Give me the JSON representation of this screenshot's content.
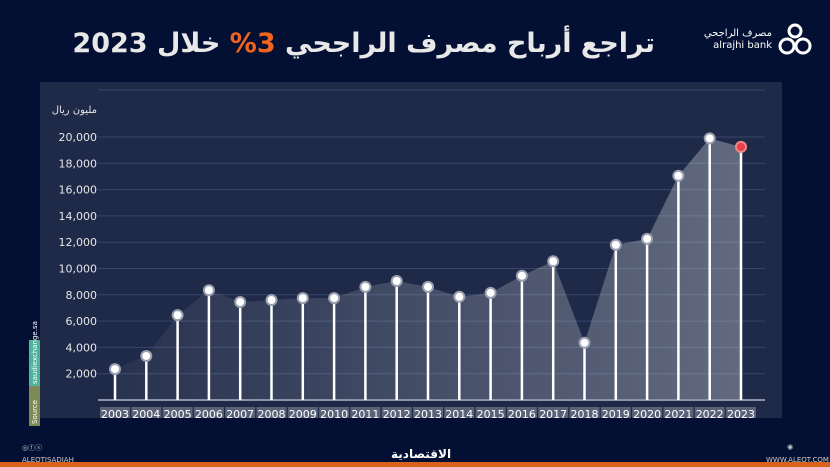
{
  "title": {
    "pre": "تراجع أرباح مصرف الراجحي ",
    "highlight": "3%",
    "post": " خلال 2023"
  },
  "logo": {
    "ar": "مصرف الراجحي",
    "en": "alrajhi bank"
  },
  "source": {
    "label": "Source",
    "value": "saudiexchange.sa"
  },
  "footer": {
    "left": "ALEQTISADIAH",
    "center": "الاقتصادية",
    "right": "WWW.ALEQT.COM"
  },
  "colors": {
    "bg": "#041033",
    "panel": "#1f2a48",
    "accent": "#f0641e",
    "last_dot": "#e8404a"
  },
  "chart_data": {
    "type": "line",
    "title": "تراجع أرباح مصرف الراجحي 3% خلال 2023",
    "ylabel": "مليون ريال",
    "xlabel": "",
    "ylim": [
      0,
      22000
    ],
    "yticks": [
      2000,
      4000,
      6000,
      8000,
      10000,
      12000,
      14000,
      16000,
      18000,
      20000
    ],
    "ytick_labels": [
      "2,000",
      "4,000",
      "6,000",
      "8,000",
      "10,000",
      "12,000",
      "14,000",
      "16,000",
      "18,000",
      "20,000"
    ],
    "categories": [
      "2003",
      "2004",
      "2005",
      "2006",
      "2007",
      "2008",
      "2009",
      "2010",
      "2011",
      "2012",
      "2013",
      "2014",
      "2015",
      "2016",
      "2017",
      "2018",
      "2019",
      "2020",
      "2021",
      "2022",
      "2023"
    ],
    "values": [
      2350,
      3350,
      6450,
      8350,
      7450,
      7600,
      7750,
      7750,
      8600,
      9050,
      8600,
      7850,
      8150,
      9450,
      10550,
      4350,
      11800,
      12250,
      17050,
      19900,
      19250
    ]
  }
}
